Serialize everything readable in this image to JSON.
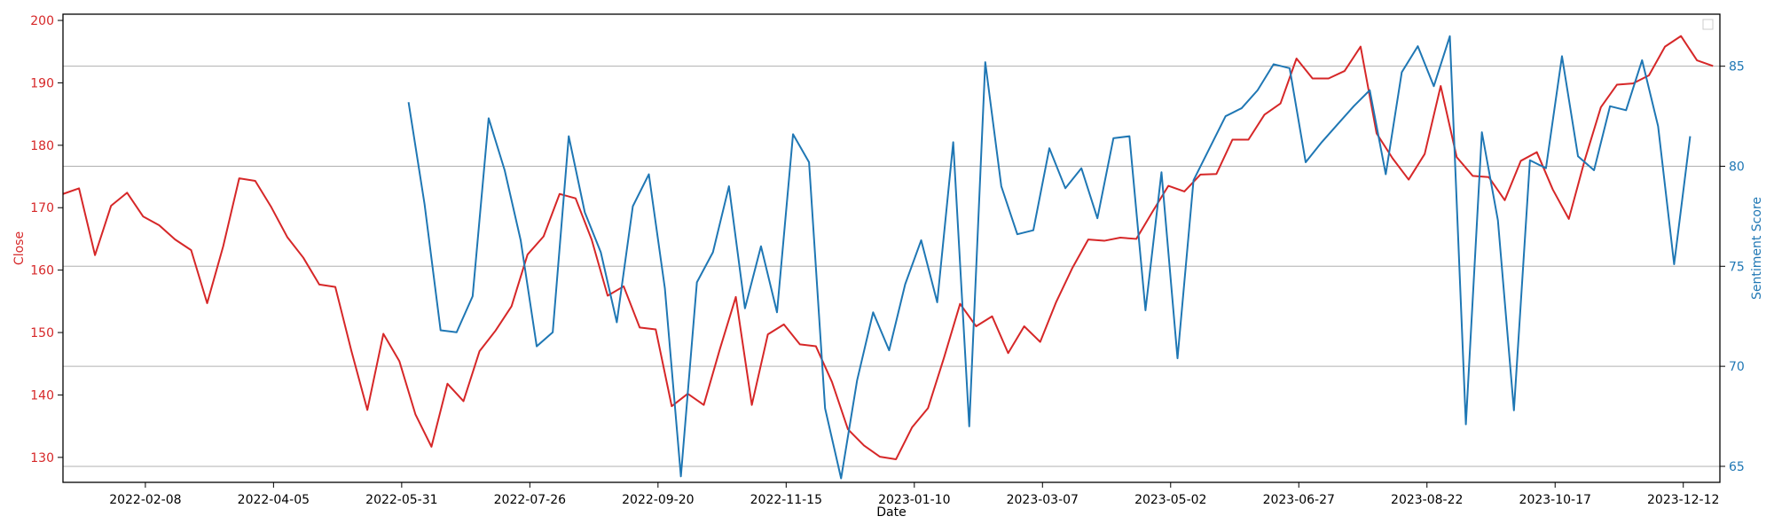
{
  "chart_data": {
    "type": "line",
    "xlabel": "Date",
    "x_tick_labels": [
      "2022-02-08",
      "2022-04-05",
      "2022-05-31",
      "2022-07-26",
      "2022-09-20",
      "2022-11-15",
      "2023-01-10",
      "2023-03-07",
      "2023-05-02",
      "2023-06-27",
      "2023-08-22",
      "2023-10-17",
      "2023-12-12"
    ],
    "x_range": [
      "2022-01-03",
      "2023-12-28"
    ],
    "y_left": {
      "label": "Close",
      "color": "#d62728",
      "ticks": [
        130,
        140,
        150,
        160,
        170,
        180,
        190,
        200
      ],
      "ylim": [
        126,
        201
      ]
    },
    "y_right": {
      "label": "Sentiment Score",
      "color": "#1f77b4",
      "ticks": [
        65,
        70,
        75,
        80,
        85
      ],
      "ylim": [
        64.2,
        87.6
      ]
    },
    "grid": "horizontal (right axis ticks)",
    "legend": "empty box at top-right",
    "series": [
      {
        "axis": "left",
        "color": "#d62728",
        "values": [
          [
            "2022-01-03",
            172.2
          ],
          [
            "2022-01-10",
            173.1
          ],
          [
            "2022-01-17",
            162.4
          ],
          [
            "2022-01-24",
            170.3
          ],
          [
            "2022-01-31",
            172.4
          ],
          [
            "2022-02-07",
            168.6
          ],
          [
            "2022-02-14",
            167.2
          ],
          [
            "2022-02-21",
            164.9
          ],
          [
            "2022-02-28",
            163.2
          ],
          [
            "2022-03-07",
            154.7
          ],
          [
            "2022-03-14",
            163.8
          ],
          [
            "2022-03-21",
            174.7
          ],
          [
            "2022-03-28",
            174.3
          ],
          [
            "2022-04-04",
            170.1
          ],
          [
            "2022-04-11",
            165.3
          ],
          [
            "2022-04-18",
            162.0
          ],
          [
            "2022-04-25",
            157.7
          ],
          [
            "2022-05-02",
            157.3
          ],
          [
            "2022-05-09",
            147.1
          ],
          [
            "2022-05-16",
            137.6
          ],
          [
            "2022-05-23",
            149.8
          ],
          [
            "2022-05-30",
            145.4
          ],
          [
            "2022-06-06",
            136.9
          ],
          [
            "2022-06-13",
            131.7
          ],
          [
            "2022-06-20",
            141.8
          ],
          [
            "2022-06-27",
            139.0
          ],
          [
            "2022-07-04",
            147.0
          ],
          [
            "2022-07-11",
            150.3
          ],
          [
            "2022-07-18",
            154.2
          ],
          [
            "2022-07-25",
            162.5
          ],
          [
            "2022-08-01",
            165.4
          ],
          [
            "2022-08-08",
            172.2
          ],
          [
            "2022-08-15",
            171.5
          ],
          [
            "2022-08-22",
            164.9
          ],
          [
            "2022-08-29",
            155.9
          ],
          [
            "2022-09-05",
            157.4
          ],
          [
            "2022-09-12",
            150.8
          ],
          [
            "2022-09-19",
            150.5
          ],
          [
            "2022-09-26",
            138.2
          ],
          [
            "2022-10-03",
            140.2
          ],
          [
            "2022-10-10",
            138.4
          ],
          [
            "2022-10-17",
            147.3
          ],
          [
            "2022-10-24",
            155.7
          ],
          [
            "2022-10-31",
            138.4
          ],
          [
            "2022-11-07",
            149.7
          ],
          [
            "2022-11-14",
            151.3
          ],
          [
            "2022-11-21",
            148.1
          ],
          [
            "2022-11-28",
            147.8
          ],
          [
            "2022-12-05",
            142.1
          ],
          [
            "2022-12-12",
            134.5
          ],
          [
            "2022-12-19",
            131.9
          ],
          [
            "2022-12-26",
            130.1
          ],
          [
            "2023-01-02",
            129.7
          ],
          [
            "2023-01-09",
            134.8
          ],
          [
            "2023-01-16",
            137.9
          ],
          [
            "2023-01-23",
            146.0
          ],
          [
            "2023-01-30",
            154.6
          ],
          [
            "2023-02-06",
            151.0
          ],
          [
            "2023-02-13",
            152.6
          ],
          [
            "2023-02-20",
            146.7
          ],
          [
            "2023-02-27",
            151.0
          ],
          [
            "2023-03-06",
            148.5
          ],
          [
            "2023-03-13",
            154.9
          ],
          [
            "2023-03-20",
            160.3
          ],
          [
            "2023-03-27",
            164.9
          ],
          [
            "2023-04-03",
            164.7
          ],
          [
            "2023-04-10",
            165.2
          ],
          [
            "2023-04-17",
            165.0
          ],
          [
            "2023-04-24",
            169.3
          ],
          [
            "2023-05-01",
            173.5
          ],
          [
            "2023-05-08",
            172.6
          ],
          [
            "2023-05-15",
            175.3
          ],
          [
            "2023-05-22",
            175.4
          ],
          [
            "2023-05-29",
            180.9
          ],
          [
            "2023-06-05",
            180.9
          ],
          [
            "2023-06-12",
            184.9
          ],
          [
            "2023-06-19",
            186.7
          ],
          [
            "2023-06-26",
            193.9
          ],
          [
            "2023-07-03",
            190.7
          ],
          [
            "2023-07-10",
            190.7
          ],
          [
            "2023-07-17",
            191.9
          ],
          [
            "2023-07-24",
            195.8
          ],
          [
            "2023-07-31",
            181.9
          ],
          [
            "2023-08-07",
            177.9
          ],
          [
            "2023-08-14",
            174.5
          ],
          [
            "2023-08-21",
            178.6
          ],
          [
            "2023-08-28",
            189.5
          ],
          [
            "2023-09-04",
            178.1
          ],
          [
            "2023-09-11",
            175.1
          ],
          [
            "2023-09-18",
            174.9
          ],
          [
            "2023-09-25",
            171.2
          ],
          [
            "2023-10-02",
            177.5
          ],
          [
            "2023-10-09",
            178.9
          ],
          [
            "2023-10-16",
            172.9
          ],
          [
            "2023-10-23",
            168.2
          ],
          [
            "2023-10-30",
            177.7
          ],
          [
            "2023-11-06",
            186.1
          ],
          [
            "2023-11-13",
            189.7
          ],
          [
            "2023-11-20",
            189.9
          ],
          [
            "2023-11-27",
            191.2
          ],
          [
            "2023-12-04",
            195.8
          ],
          [
            "2023-12-11",
            197.5
          ],
          [
            "2023-12-18",
            193.6
          ],
          [
            "2023-12-25",
            192.7
          ]
        ]
      },
      {
        "axis": "right",
        "color": "#1f77b4",
        "values": [
          [
            "2022-06-03",
            83.2
          ],
          [
            "2022-06-10",
            78.1
          ],
          [
            "2022-06-17",
            71.8
          ],
          [
            "2022-06-24",
            71.7
          ],
          [
            "2022-07-01",
            73.5
          ],
          [
            "2022-07-08",
            82.4
          ],
          [
            "2022-07-15",
            79.8
          ],
          [
            "2022-07-22",
            76.3
          ],
          [
            "2022-07-29",
            71.0
          ],
          [
            "2022-08-05",
            71.7
          ],
          [
            "2022-08-12",
            81.5
          ],
          [
            "2022-08-19",
            77.7
          ],
          [
            "2022-08-26",
            75.7
          ],
          [
            "2022-09-02",
            72.2
          ],
          [
            "2022-09-09",
            78.0
          ],
          [
            "2022-09-16",
            79.6
          ],
          [
            "2022-09-23",
            73.9
          ],
          [
            "2022-09-30",
            64.5
          ],
          [
            "2022-10-07",
            74.2
          ],
          [
            "2022-10-14",
            75.7
          ],
          [
            "2022-10-21",
            79.0
          ],
          [
            "2022-10-28",
            72.9
          ],
          [
            "2022-11-04",
            76.0
          ],
          [
            "2022-11-11",
            72.7
          ],
          [
            "2022-11-18",
            81.6
          ],
          [
            "2022-11-25",
            80.2
          ],
          [
            "2022-12-02",
            67.9
          ],
          [
            "2022-12-09",
            64.4
          ],
          [
            "2022-12-16",
            69.3
          ],
          [
            "2022-12-23",
            72.7
          ],
          [
            "2022-12-30",
            70.8
          ],
          [
            "2023-01-06",
            74.1
          ],
          [
            "2023-01-13",
            76.3
          ],
          [
            "2023-01-20",
            73.2
          ],
          [
            "2023-01-27",
            81.2
          ],
          [
            "2023-02-03",
            67.0
          ],
          [
            "2023-02-10",
            85.2
          ],
          [
            "2023-02-17",
            79.0
          ],
          [
            "2023-02-24",
            76.6
          ],
          [
            "2023-03-03",
            76.8
          ],
          [
            "2023-03-10",
            80.9
          ],
          [
            "2023-03-17",
            78.9
          ],
          [
            "2023-03-24",
            79.9
          ],
          [
            "2023-03-31",
            77.4
          ],
          [
            "2023-04-07",
            81.4
          ],
          [
            "2023-04-14",
            81.5
          ],
          [
            "2023-04-21",
            72.8
          ],
          [
            "2023-04-28",
            79.7
          ],
          [
            "2023-05-05",
            70.4
          ],
          [
            "2023-05-12",
            79.3
          ],
          [
            "2023-05-19",
            80.9
          ],
          [
            "2023-05-26",
            82.5
          ],
          [
            "2023-06-02",
            82.9
          ],
          [
            "2023-06-09",
            83.8
          ],
          [
            "2023-06-16",
            85.1
          ],
          [
            "2023-06-23",
            84.9
          ],
          [
            "2023-06-30",
            80.2
          ],
          [
            "2023-07-07",
            81.2
          ],
          [
            "2023-07-14",
            82.1
          ],
          [
            "2023-07-21",
            83.0
          ],
          [
            "2023-07-28",
            83.8
          ],
          [
            "2023-08-04",
            79.6
          ],
          [
            "2023-08-11",
            84.7
          ],
          [
            "2023-08-18",
            86.0
          ],
          [
            "2023-08-25",
            84.0
          ],
          [
            "2023-09-01",
            86.5
          ],
          [
            "2023-09-08",
            67.1
          ],
          [
            "2023-09-15",
            81.7
          ],
          [
            "2023-09-22",
            77.3
          ],
          [
            "2023-09-29",
            67.8
          ],
          [
            "2023-10-06",
            80.3
          ],
          [
            "2023-10-13",
            79.9
          ],
          [
            "2023-10-20",
            85.5
          ],
          [
            "2023-10-27",
            80.5
          ],
          [
            "2023-11-03",
            79.8
          ],
          [
            "2023-11-10",
            83.0
          ],
          [
            "2023-11-17",
            82.8
          ],
          [
            "2023-11-24",
            85.3
          ],
          [
            "2023-12-01",
            82.0
          ],
          [
            "2023-12-08",
            75.1
          ],
          [
            "2023-12-15",
            81.5
          ]
        ]
      }
    ]
  }
}
